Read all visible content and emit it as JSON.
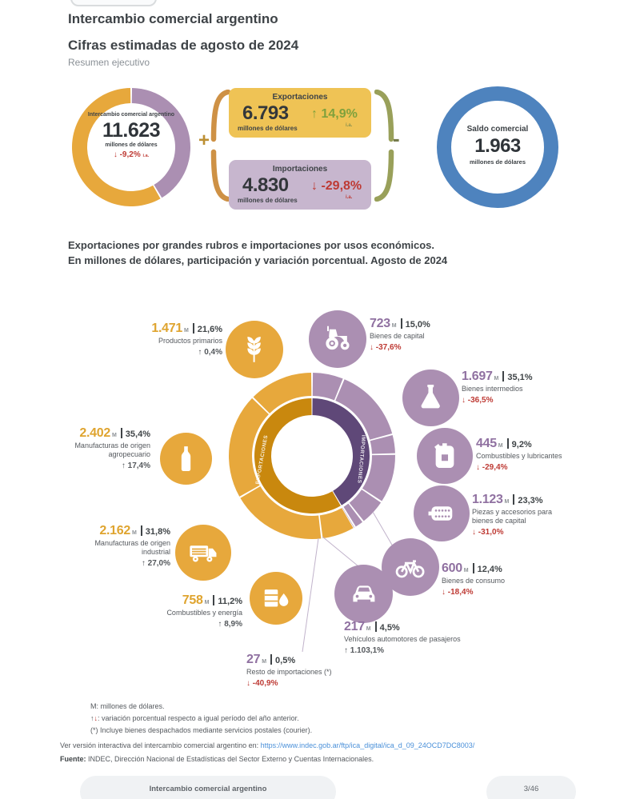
{
  "page": {
    "title": "Intercambio comercial argentino",
    "subtitle": "Cifras estimadas de agosto de 2024",
    "kicker": "Resumen ejecutivo"
  },
  "summary": {
    "total": {
      "label": "Intercambio comercial argentino",
      "value": "11.623",
      "unit": "millones de dólares",
      "change": "↓ -9,2%",
      "change_note": "i.a."
    },
    "exports": {
      "title": "Exportaciones",
      "value": "6.793",
      "unit": "millones de dólares",
      "change": "↑ 14,9%",
      "change_note": "i.a."
    },
    "imports": {
      "title": "Importaciones",
      "value": "4.830",
      "unit": "millones de dólares",
      "change": "↓ -29,8%",
      "change_note": "i.a."
    },
    "balance": {
      "title": "Saldo comercial",
      "value": "1.963",
      "unit": "millones de dólares"
    },
    "operators": {
      "plus": "+",
      "minus": "-"
    }
  },
  "section_heading": {
    "line1": "Exportaciones por grandes rubros e importaciones por usos económicos.",
    "line2": "En millones de dólares, participación y variación porcentual. Agosto de 2024"
  },
  "chart_data": {
    "type": "pie",
    "subtype": "double-ring-donut",
    "title": "Exportaciones por grandes rubros e importaciones por usos económicos",
    "unit": "millones de dólares",
    "period": "Agosto de 2024",
    "units_m": "M",
    "totals": {
      "trade": 11623,
      "exports": 6793,
      "imports": 4830,
      "balance": 1963
    },
    "ring_labels": {
      "exports": "EXPORTACIONES",
      "imports": "IMPORTACIONES"
    },
    "series": [
      {
        "name": "Exportaciones",
        "total": 6793,
        "color": "#E7A83C",
        "inner_color": "#C9880E",
        "direction": "counterclockwise-from-top",
        "items": [
          {
            "label": "Productos primarios",
            "value": 1471,
            "value_display": "1.471",
            "share": "21,6%",
            "change_display": "↑ 0,4%",
            "icon": "wheat-icon"
          },
          {
            "label": "Manufacturas de origen agropecuario",
            "value": 2402,
            "value_display": "2.402",
            "share": "35,4%",
            "change_display": "↑ 17,4%",
            "icon": "bottle-icon"
          },
          {
            "label": "Manufacturas de origen industrial",
            "value": 2162,
            "value_display": "2.162",
            "share": "31,8%",
            "change_display": "↑ 27,0%",
            "icon": "truck-icon"
          },
          {
            "label": "Combustibles y energía",
            "value": 758,
            "value_display": "758",
            "share": "11,2%",
            "change_display": "↑ 8,9%",
            "icon": "oil-barrel-icon"
          }
        ]
      },
      {
        "name": "Importaciones",
        "total": 4830,
        "color": "#AB8FB2",
        "inner_color": "#5F4878",
        "direction": "clockwise-from-top",
        "items": [
          {
            "label": "Bienes de capital",
            "value": 723,
            "value_display": "723",
            "share": "15,0%",
            "change_display": "↓ -37,6%",
            "icon": "tractor-icon"
          },
          {
            "label": "Bienes intermedios",
            "value": 1697,
            "value_display": "1.697",
            "share": "35,1%",
            "change_display": "↓ -36,5%",
            "icon": "flask-icon"
          },
          {
            "label": "Combustibles y lubricantes",
            "value": 445,
            "value_display": "445",
            "share": "9,2%",
            "change_display": "↓ -29,4%",
            "icon": "jerrycan-icon"
          },
          {
            "label": "Piezas y accesorios para bienes de capital",
            "value": 1123,
            "value_display": "1.123",
            "share": "23,3%",
            "change_display": "↓ -31,0%",
            "icon": "machine-part-icon"
          },
          {
            "label": "Bienes de consumo",
            "value": 600,
            "value_display": "600",
            "share": "12,4%",
            "change_display": "↓ -18,4%",
            "icon": "bicycle-icon"
          },
          {
            "label": "Vehículos automotores de pasajeros",
            "value": 217,
            "value_display": "217",
            "share": "4,5%",
            "change_display": "↑ 1.103,1%",
            "icon": "car-icon"
          },
          {
            "label": "Resto de importaciones (*)",
            "value": 27,
            "value_display": "27",
            "share": "0,5%",
            "change_display": "↓ -40,9%",
            "icon": null
          }
        ]
      }
    ]
  },
  "footnotes": {
    "m": "M: millones de dólares.",
    "arrow_up": "↑",
    "arrow_down": "↓",
    "arrows_text": ": variación porcentual respecto a igual período del año anterior.",
    "asterisk": "(*) Incluye bienes despachados mediante servicios postales (courier).",
    "interactive_prefix": "Ver versión interactiva del intercambio comercial argentino en: ",
    "interactive_url": "https://www.indec.gob.ar/ftp/ica_digital/ica_d_09_24OCD7DC8003/",
    "source_label": "Fuente:",
    "source_text": " INDEC, Dirección Nacional de Estadísticas del Sector Externo y Cuentas Internacionales."
  },
  "footer": {
    "doc_pill": "Intercambio comercial argentino",
    "page_pill": "3/46"
  },
  "colors": {
    "gold": "#E7A83C",
    "gold_dark": "#C9880E",
    "gold_box": "#EFC355",
    "gold_text": "#DFA42F",
    "lilac": "#AB8FB2",
    "purple_dark": "#5F4878",
    "lilac_box": "#C7B6CE",
    "purple_text": "#9071A1",
    "blue": "#4E83BE",
    "red": "#BE3A34",
    "green": "#7FA13C",
    "text_dark": "#3E4347",
    "text_gray": "#8A9096",
    "link": "#4A90D9"
  }
}
